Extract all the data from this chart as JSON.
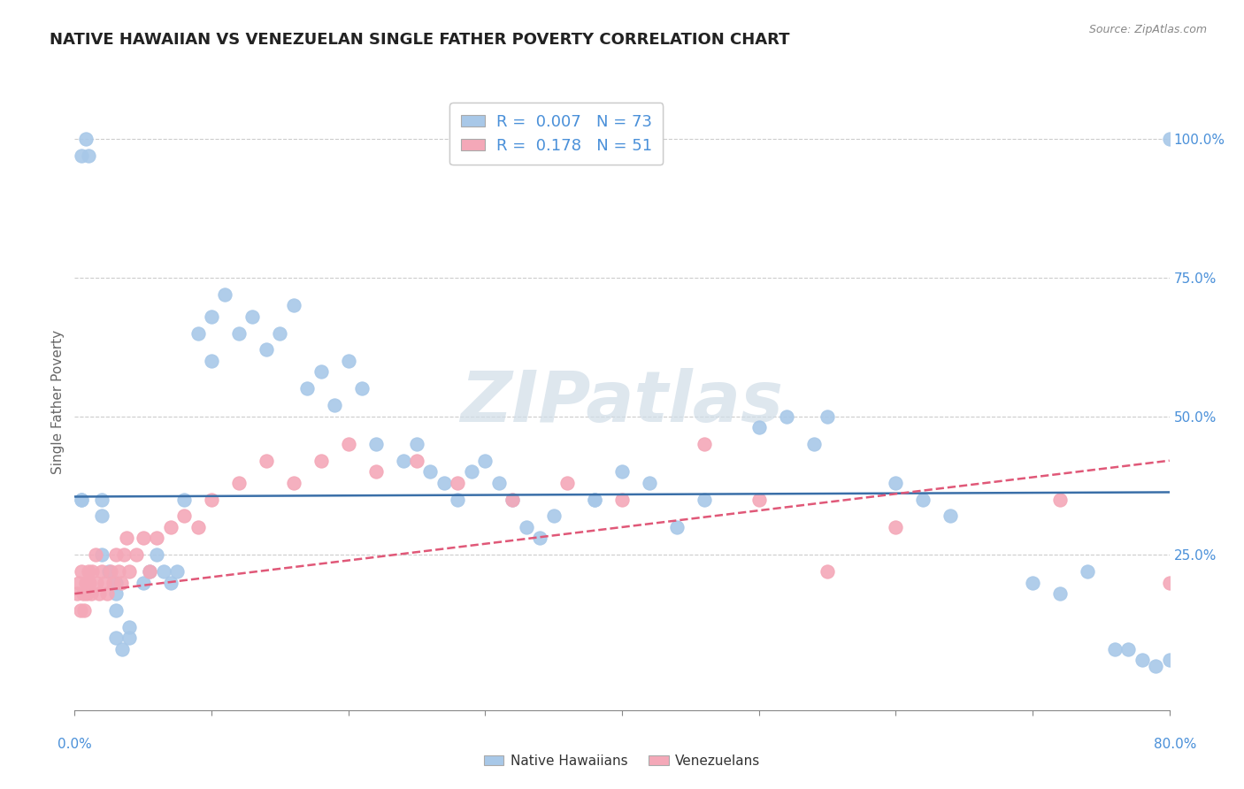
{
  "title": "NATIVE HAWAIIAN VS VENEZUELAN SINGLE FATHER POVERTY CORRELATION CHART",
  "source": "Source: ZipAtlas.com",
  "ylabel": "Single Father Poverty",
  "right_yticks": [
    "100.0%",
    "75.0%",
    "50.0%",
    "25.0%"
  ],
  "right_ytick_vals": [
    1.0,
    0.75,
    0.5,
    0.25
  ],
  "xmin": 0.0,
  "xmax": 0.8,
  "ymin": -0.03,
  "ymax": 1.08,
  "blue_color": "#a8c8e8",
  "pink_color": "#f4a8b8",
  "blue_line_color": "#3a6fa8",
  "pink_line_color": "#e05878",
  "blue_R": 0.007,
  "pink_R": 0.178,
  "watermark_text": "ZIPatlas",
  "native_hawaiian_x": [
    0.005,
    0.008,
    0.01,
    0.02,
    0.02,
    0.02,
    0.025,
    0.03,
    0.03,
    0.03,
    0.03,
    0.035,
    0.04,
    0.04,
    0.05,
    0.055,
    0.06,
    0.065,
    0.07,
    0.075,
    0.08,
    0.09,
    0.1,
    0.1,
    0.11,
    0.12,
    0.13,
    0.14,
    0.15,
    0.16,
    0.17,
    0.18,
    0.19,
    0.2,
    0.21,
    0.22,
    0.24,
    0.25,
    0.26,
    0.27,
    0.28,
    0.29,
    0.3,
    0.31,
    0.32,
    0.33,
    0.34,
    0.35,
    0.38,
    0.4,
    0.42,
    0.44,
    0.46,
    0.5,
    0.52,
    0.54,
    0.6,
    0.62,
    0.64,
    0.7,
    0.72,
    0.74,
    0.76,
    0.77,
    0.78,
    0.79,
    0.8,
    0.005,
    0.005,
    0.38,
    0.55,
    0.8
  ],
  "native_hawaiian_y": [
    0.97,
    1.0,
    0.97,
    0.35,
    0.32,
    0.25,
    0.22,
    0.2,
    0.18,
    0.15,
    0.1,
    0.08,
    0.12,
    0.1,
    0.2,
    0.22,
    0.25,
    0.22,
    0.2,
    0.22,
    0.35,
    0.65,
    0.68,
    0.6,
    0.72,
    0.65,
    0.68,
    0.62,
    0.65,
    0.7,
    0.55,
    0.58,
    0.52,
    0.6,
    0.55,
    0.45,
    0.42,
    0.45,
    0.4,
    0.38,
    0.35,
    0.4,
    0.42,
    0.38,
    0.35,
    0.3,
    0.28,
    0.32,
    0.35,
    0.4,
    0.38,
    0.3,
    0.35,
    0.48,
    0.5,
    0.45,
    0.38,
    0.35,
    0.32,
    0.2,
    0.18,
    0.22,
    0.08,
    0.08,
    0.06,
    0.05,
    0.06,
    0.35,
    0.35,
    0.35,
    0.5,
    1.0
  ],
  "venezuelan_x": [
    0.002,
    0.003,
    0.004,
    0.005,
    0.006,
    0.007,
    0.008,
    0.009,
    0.01,
    0.011,
    0.012,
    0.013,
    0.015,
    0.016,
    0.018,
    0.02,
    0.022,
    0.024,
    0.026,
    0.028,
    0.03,
    0.032,
    0.034,
    0.036,
    0.038,
    0.04,
    0.045,
    0.05,
    0.055,
    0.06,
    0.07,
    0.08,
    0.09,
    0.1,
    0.12,
    0.14,
    0.16,
    0.18,
    0.2,
    0.22,
    0.25,
    0.28,
    0.32,
    0.36,
    0.4,
    0.46,
    0.5,
    0.55,
    0.6,
    0.72,
    0.8
  ],
  "venezuelan_y": [
    0.18,
    0.2,
    0.15,
    0.22,
    0.18,
    0.15,
    0.2,
    0.18,
    0.22,
    0.2,
    0.18,
    0.22,
    0.25,
    0.2,
    0.18,
    0.22,
    0.2,
    0.18,
    0.22,
    0.2,
    0.25,
    0.22,
    0.2,
    0.25,
    0.28,
    0.22,
    0.25,
    0.28,
    0.22,
    0.28,
    0.3,
    0.32,
    0.3,
    0.35,
    0.38,
    0.42,
    0.38,
    0.42,
    0.45,
    0.4,
    0.42,
    0.38,
    0.35,
    0.38,
    0.35,
    0.45,
    0.35,
    0.22,
    0.3,
    0.35,
    0.2
  ]
}
